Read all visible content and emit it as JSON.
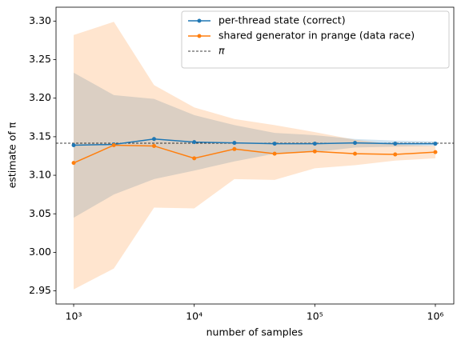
{
  "chart_data": {
    "type": "line",
    "x_label": "number of samples",
    "y_label": "estimate of π",
    "x": [
      1000,
      2154,
      4642,
      10000,
      21544,
      46416,
      100000,
      215443,
      464159,
      1000000
    ],
    "series": [
      {
        "name": "per-thread state (correct)",
        "color": "#1f77b4",
        "values": [
          3.139,
          3.14,
          3.147,
          3.143,
          3.142,
          3.141,
          3.141,
          3.142,
          3.141,
          3.141
        ],
        "lower": [
          3.045,
          3.075,
          3.095,
          3.106,
          3.118,
          3.128,
          3.13,
          3.136,
          3.137,
          3.138
        ],
        "upper": [
          3.233,
          3.204,
          3.199,
          3.178,
          3.165,
          3.155,
          3.152,
          3.147,
          3.145,
          3.144
        ]
      },
      {
        "name": "shared generator in prange (data race)",
        "color": "#ff7f0e",
        "values": [
          3.116,
          3.139,
          3.138,
          3.122,
          3.134,
          3.128,
          3.131,
          3.128,
          3.127,
          3.13
        ],
        "lower": [
          2.952,
          2.979,
          3.058,
          3.057,
          3.095,
          3.094,
          3.109,
          3.113,
          3.119,
          3.122
        ],
        "upper": [
          3.282,
          3.299,
          3.217,
          3.188,
          3.173,
          3.165,
          3.156,
          3.146,
          3.14,
          3.138
        ]
      }
    ],
    "hline": {
      "name": "π",
      "value": 3.14159,
      "color": "#000000"
    },
    "x_log": true,
    "xlim": [
      714,
      1422000
    ],
    "xticks": [
      {
        "value": 1000,
        "label": "10³"
      },
      {
        "value": 10000,
        "label": "10⁴"
      },
      {
        "value": 100000,
        "label": "10⁵"
      },
      {
        "value": 1000000,
        "label": "10⁶"
      }
    ],
    "ylim": [
      2.933,
      3.318
    ],
    "yticks": [
      2.95,
      {
        "value": 3.0,
        "label": "3.00"
      },
      3.05,
      {
        "value": 3.1,
        "label": "3.10"
      },
      3.15,
      {
        "value": 3.2,
        "label": "3.20"
      },
      3.25,
      {
        "value": 3.3,
        "label": "3.30"
      }
    ],
    "legend": "upper right"
  }
}
